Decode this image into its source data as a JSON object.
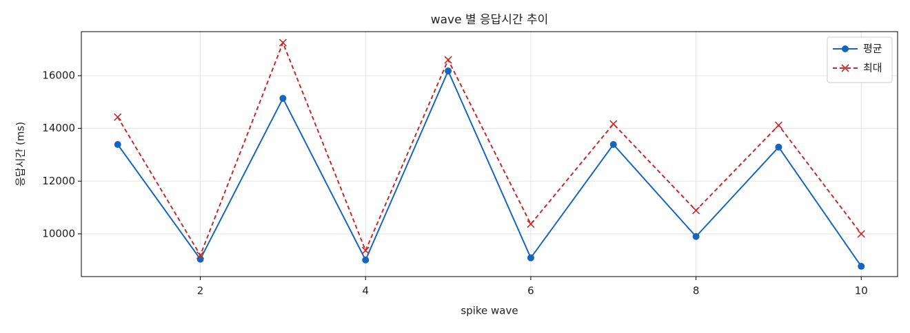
{
  "chart_data": {
    "type": "line",
    "title": "wave 별 응답시간 추이",
    "xlabel": "spike wave",
    "ylabel": "응답시간 (ms)",
    "x": [
      1,
      2,
      3,
      4,
      5,
      6,
      7,
      8,
      9,
      10
    ],
    "series": [
      {
        "name": "평균",
        "color": "#1565c0",
        "marker": "o",
        "linestyle": "solid",
        "values": [
          13390,
          9040,
          15140,
          9010,
          16180,
          9090,
          13390,
          9900,
          13290,
          8770
        ]
      },
      {
        "name": "최대",
        "color": "#c62828",
        "marker": "x",
        "linestyle": "dashed",
        "values": [
          14430,
          9190,
          17250,
          9370,
          16600,
          10370,
          14170,
          10890,
          14120,
          10000
        ]
      }
    ],
    "xlim": [
      0.56,
      10.44
    ],
    "xticks": [
      2,
      4,
      6,
      8,
      10
    ],
    "ylim": [
      8380,
      17670
    ],
    "yticks": [
      10000,
      12000,
      14000,
      16000
    ],
    "grid": true,
    "legend": "upper right"
  }
}
